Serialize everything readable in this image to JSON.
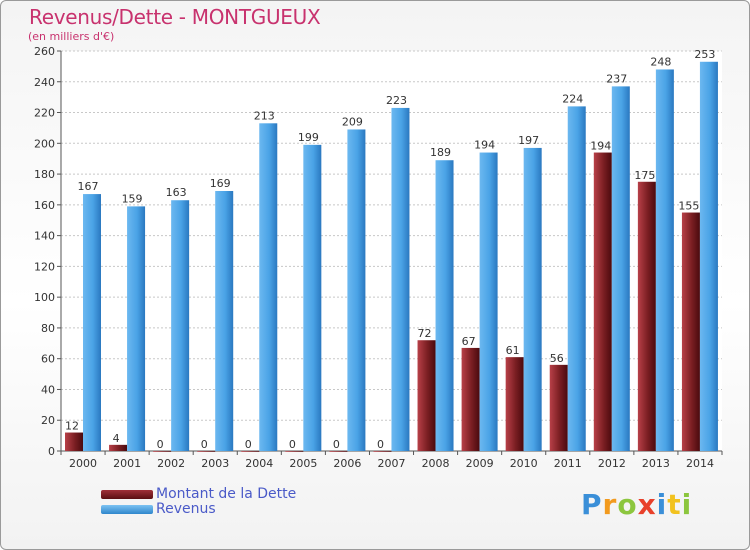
{
  "chart_data": {
    "type": "bar",
    "title": "Revenus/Dette - MONTGUEUX",
    "subtitle": "(en milliers d'€)",
    "categories": [
      "2000",
      "2001",
      "2002",
      "2003",
      "2004",
      "2005",
      "2006",
      "2007",
      "2008",
      "2009",
      "2010",
      "2011",
      "2012",
      "2013",
      "2014"
    ],
    "series": [
      {
        "name": "Montant de la Dette",
        "color": "#7a1e22",
        "values": [
          12,
          4,
          0,
          0,
          0,
          0,
          0,
          0,
          72,
          67,
          61,
          56,
          194,
          175,
          155
        ]
      },
      {
        "name": "Revenus",
        "color": "#4aa3e6",
        "values": [
          167,
          159,
          163,
          169,
          213,
          199,
          209,
          223,
          189,
          194,
          197,
          224,
          237,
          248,
          253
        ]
      }
    ],
    "ylim": [
      0,
      260
    ],
    "yticks": [
      0,
      20,
      40,
      60,
      80,
      100,
      120,
      140,
      160,
      180,
      200,
      220,
      240,
      260
    ],
    "grid": true,
    "legend": "bottom-left"
  },
  "logo": {
    "letters": [
      "P",
      "r",
      "o",
      "x",
      "i",
      "t",
      "i"
    ]
  }
}
